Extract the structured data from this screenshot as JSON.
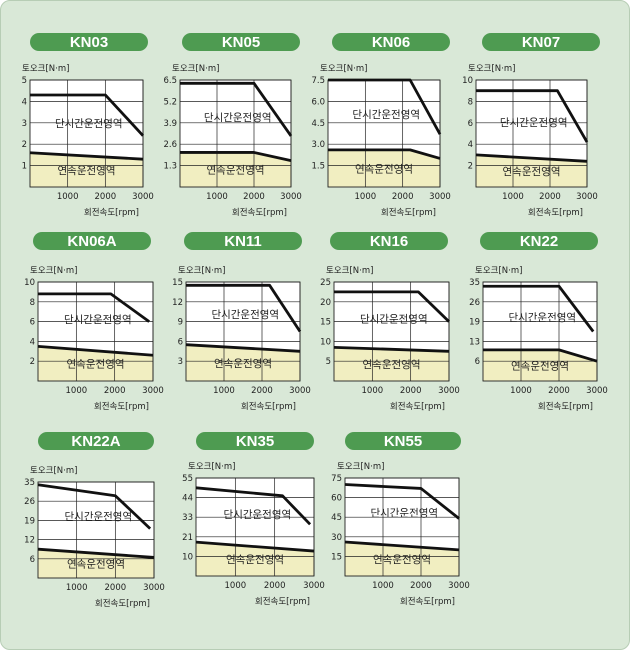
{
  "chart_data": [
    {
      "type": "line",
      "title": "KN03",
      "ylabel": "토오크[N·m]",
      "xlabel": "회전속도[rpm]",
      "yticks": [
        "1",
        "2",
        "3",
        "4",
        "5"
      ],
      "ylim": [
        0,
        5
      ],
      "xticks": [
        "1000",
        "2000",
        "3000"
      ],
      "xlim": [
        0,
        3000
      ],
      "series": [
        {
          "name": "단시간운전영역",
          "x": [
            0,
            2000,
            3000
          ],
          "y": [
            4.3,
            4.3,
            2.4
          ]
        },
        {
          "name": "연속운전영역",
          "x": [
            0,
            3000
          ],
          "y": [
            1.6,
            1.3
          ]
        }
      ]
    },
    {
      "type": "line",
      "title": "KN05",
      "ylabel": "토오크[N·m]",
      "xlabel": "회전속도[rpm]",
      "yticks": [
        "1.3",
        "2.6",
        "3.9",
        "5.2",
        "6.5"
      ],
      "ylim": [
        0,
        6.5
      ],
      "xticks": [
        "1000",
        "2000",
        "3000"
      ],
      "xlim": [
        0,
        3000
      ],
      "series": [
        {
          "name": "단시간운전영역",
          "x": [
            0,
            2000,
            3000
          ],
          "y": [
            6.3,
            6.3,
            3.1
          ]
        },
        {
          "name": "연속운전영역",
          "x": [
            0,
            2000,
            3000
          ],
          "y": [
            2.1,
            2.1,
            1.6
          ]
        }
      ]
    },
    {
      "type": "line",
      "title": "KN06",
      "ylabel": "토오크[N·m]",
      "xlabel": "회전속도[rpm]",
      "yticks": [
        "1.5",
        "3.0",
        "4.5",
        "6.0",
        "7.5"
      ],
      "ylim": [
        0,
        7.5
      ],
      "xticks": [
        "1000",
        "2000",
        "3000"
      ],
      "xlim": [
        0,
        3000
      ],
      "series": [
        {
          "name": "단시간운전영역",
          "x": [
            0,
            2200,
            3000
          ],
          "y": [
            7.5,
            7.5,
            3.7
          ]
        },
        {
          "name": "연속운전영역",
          "x": [
            0,
            2200,
            3000
          ],
          "y": [
            2.6,
            2.6,
            2.0
          ]
        }
      ]
    },
    {
      "type": "line",
      "title": "KN07",
      "ylabel": "토오크[N·m]",
      "xlabel": "회전속도[rpm]",
      "yticks": [
        "2",
        "4",
        "6",
        "8",
        "10"
      ],
      "ylim": [
        0,
        10
      ],
      "xticks": [
        "1000",
        "2000",
        "3000"
      ],
      "xlim": [
        0,
        3000
      ],
      "series": [
        {
          "name": "단시간운전영역",
          "x": [
            0,
            2200,
            3000
          ],
          "y": [
            9.0,
            9.0,
            4.2
          ]
        },
        {
          "name": "연속운전영역",
          "x": [
            0,
            3000
          ],
          "y": [
            3.0,
            2.4
          ]
        }
      ]
    },
    {
      "type": "line",
      "title": "KN06A",
      "ylabel": "토오크[N·m]",
      "xlabel": "회전속도[rpm]",
      "yticks": [
        "2",
        "4",
        "6",
        "8",
        "10"
      ],
      "ylim": [
        0,
        10
      ],
      "xticks": [
        "1000",
        "2000",
        "3000"
      ],
      "xlim": [
        0,
        3000
      ],
      "series": [
        {
          "name": "단시간운전영역",
          "x": [
            0,
            1900,
            2900
          ],
          "y": [
            8.8,
            8.8,
            6.0
          ]
        },
        {
          "name": "연속운전영역",
          "x": [
            0,
            3000
          ],
          "y": [
            3.5,
            2.6
          ]
        }
      ]
    },
    {
      "type": "line",
      "title": "KN11",
      "ylabel": "토오크[N·m]",
      "xlabel": "회전속도[rpm]",
      "yticks": [
        "3",
        "6",
        "9",
        "12",
        "15"
      ],
      "ylim": [
        0,
        15
      ],
      "xticks": [
        "1000",
        "2000",
        "3000"
      ],
      "xlim": [
        0,
        3000
      ],
      "series": [
        {
          "name": "단시간운전영역",
          "x": [
            0,
            2200,
            3000
          ],
          "y": [
            14.5,
            14.5,
            7.5
          ]
        },
        {
          "name": "연속운전영역",
          "x": [
            0,
            3000
          ],
          "y": [
            5.5,
            4.5
          ]
        }
      ]
    },
    {
      "type": "line",
      "title": "KN16",
      "ylabel": "토오크[N·m]",
      "xlabel": "회전속도[rpm]",
      "yticks": [
        "5",
        "10",
        "15",
        "20",
        "25"
      ],
      "ylim": [
        0,
        25
      ],
      "xticks": [
        "1000",
        "2000",
        "3000"
      ],
      "xlim": [
        0,
        3000
      ],
      "series": [
        {
          "name": "단시간운전영역",
          "x": [
            0,
            2200,
            3000
          ],
          "y": [
            22.5,
            22.5,
            15.0
          ]
        },
        {
          "name": "연속운전영역",
          "x": [
            0,
            3000
          ],
          "y": [
            8.5,
            7.5
          ]
        }
      ]
    },
    {
      "type": "line",
      "title": "KN22",
      "ylabel": "토오크[N·m]",
      "xlabel": "회전속도[rpm]",
      "yticks": [
        "6",
        "13",
        "19",
        "26",
        "35"
      ],
      "ylim": [
        0,
        35
      ],
      "xticks": [
        "1000",
        "2000",
        "3000"
      ],
      "xlim": [
        0,
        3000
      ],
      "series": [
        {
          "name": "단시간운전영역",
          "x": [
            0,
            2000,
            2900
          ],
          "y": [
            33.5,
            33.5,
            17.5
          ]
        },
        {
          "name": "연속운전영역",
          "x": [
            0,
            2000,
            3000
          ],
          "y": [
            11.0,
            11.0,
            7.0
          ]
        }
      ]
    },
    {
      "type": "line",
      "title": "KN22A",
      "ylabel": "토오크[N·m]",
      "xlabel": "회전속도[rpm]",
      "yticks": [
        "6",
        "12",
        "19",
        "26",
        "35"
      ],
      "ylim": [
        0,
        35
      ],
      "xticks": [
        "1000",
        "2000",
        "3000"
      ],
      "xlim": [
        0,
        3000
      ],
      "series": [
        {
          "name": "단시간운전영역",
          "x": [
            0,
            2000,
            2900
          ],
          "y": [
            34.0,
            30.0,
            18.0
          ]
        },
        {
          "name": "연속운전영역",
          "x": [
            0,
            3000
          ],
          "y": [
            10.5,
            7.5
          ]
        }
      ]
    },
    {
      "type": "line",
      "title": "KN35",
      "ylabel": "토오크[N·m]",
      "xlabel": "회전속도[rpm]",
      "yticks": [
        "10",
        "21",
        "33",
        "44",
        "55"
      ],
      "ylim": [
        0,
        55
      ],
      "xticks": [
        "1000",
        "2000",
        "3000"
      ],
      "xlim": [
        0,
        3000
      ],
      "series": [
        {
          "name": "단시간운전영역",
          "x": [
            0,
            2200,
            2900
          ],
          "y": [
            49.5,
            45.0,
            29.0
          ]
        },
        {
          "name": "연속운전영역",
          "x": [
            0,
            3000
          ],
          "y": [
            19.0,
            14.0
          ]
        }
      ]
    },
    {
      "type": "line",
      "title": "KN55",
      "ylabel": "토오크[N·m]",
      "xlabel": "회전속도[rpm]",
      "yticks": [
        "15",
        "30",
        "45",
        "60",
        "75"
      ],
      "ylim": [
        0,
        75
      ],
      "xticks": [
        "1000",
        "2000",
        "3000"
      ],
      "xlim": [
        0,
        3000
      ],
      "series": [
        {
          "name": "단시간운전영역",
          "x": [
            0,
            2000,
            3000
          ],
          "y": [
            70.0,
            67.0,
            44.0
          ]
        },
        {
          "name": "연속운전영역",
          "x": [
            0,
            3000
          ],
          "y": [
            26.0,
            20.0
          ]
        }
      ]
    }
  ],
  "colors": {
    "panel": "#d9e8d7",
    "pill": "#4e9b51",
    "plot_top": "#ffffff",
    "plot_continuous": "#f1eec1",
    "grid": "#222222",
    "line": "#111111"
  }
}
